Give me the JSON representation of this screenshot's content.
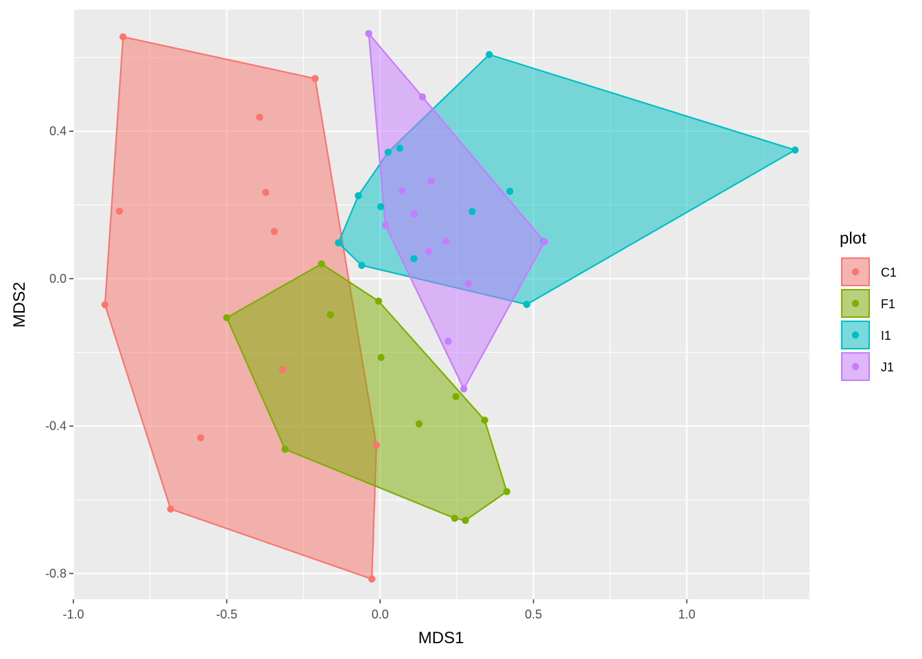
{
  "chart_data": {
    "type": "scatter",
    "xlabel": "MDS1",
    "ylabel": "MDS2",
    "xlim": [
      -1.0,
      1.4
    ],
    "ylim": [
      -0.87,
      0.73
    ],
    "x_ticks": [
      -1.0,
      -0.5,
      0.0,
      0.5,
      1.0
    ],
    "x_tick_labels": [
      "-1.0",
      "-0.5",
      "0.0",
      "0.5",
      "1.0"
    ],
    "y_ticks": [
      -0.8,
      -0.4,
      0.0,
      0.4
    ],
    "y_tick_labels": [
      "-0.8",
      "-0.4",
      "0.0",
      "0.4"
    ],
    "grid": true,
    "background": "#ebebeb",
    "legend": {
      "title": "plot",
      "position": "right"
    },
    "hulls": true,
    "series": [
      {
        "name": "C1",
        "color": "#F8766D",
        "points": [
          [
            -0.838,
            0.656
          ],
          [
            -0.212,
            0.543
          ],
          [
            -0.393,
            0.438
          ],
          [
            -0.373,
            0.234
          ],
          [
            -0.85,
            0.183
          ],
          [
            -0.345,
            0.128
          ],
          [
            -0.897,
            -0.071
          ],
          [
            -0.318,
            -0.247
          ],
          [
            -0.585,
            -0.432
          ],
          [
            -0.012,
            -0.452
          ],
          [
            -0.683,
            -0.625
          ],
          [
            -0.027,
            -0.815
          ]
        ]
      },
      {
        "name": "F1",
        "color": "#7CAE00",
        "points": [
          [
            -0.191,
            0.04
          ],
          [
            -0.5,
            -0.106
          ],
          [
            -0.162,
            -0.098
          ],
          [
            -0.005,
            -0.061
          ],
          [
            0.003,
            -0.214
          ],
          [
            0.247,
            -0.32
          ],
          [
            0.341,
            -0.384
          ],
          [
            0.127,
            -0.394
          ],
          [
            -0.31,
            -0.463
          ],
          [
            0.413,
            -0.578
          ],
          [
            0.243,
            -0.65
          ],
          [
            0.278,
            -0.656
          ]
        ]
      },
      {
        "name": "I1",
        "color": "#00BFC4",
        "points": [
          [
            0.356,
            0.608
          ],
          [
            1.353,
            0.349
          ],
          [
            0.064,
            0.354
          ],
          [
            0.026,
            0.343
          ],
          [
            0.423,
            0.237
          ],
          [
            -0.071,
            0.225
          ],
          [
            0.002,
            0.195
          ],
          [
            0.3,
            0.182
          ],
          [
            -0.136,
            0.097
          ],
          [
            0.534,
            0.101
          ],
          [
            -0.06,
            0.036
          ],
          [
            0.11,
            0.054
          ],
          [
            0.478,
            -0.07
          ]
        ]
      },
      {
        "name": "J1",
        "color": "#C77CFF",
        "points": [
          [
            -0.037,
            0.665
          ],
          [
            0.138,
            0.493
          ],
          [
            0.166,
            0.264
          ],
          [
            0.071,
            0.238
          ],
          [
            0.111,
            0.176
          ],
          [
            0.017,
            0.145
          ],
          [
            0.215,
            0.102
          ],
          [
            0.536,
            0.1
          ],
          [
            0.158,
            0.074
          ],
          [
            0.288,
            -0.013
          ],
          [
            0.222,
            -0.17
          ],
          [
            0.273,
            -0.299
          ]
        ]
      }
    ]
  }
}
